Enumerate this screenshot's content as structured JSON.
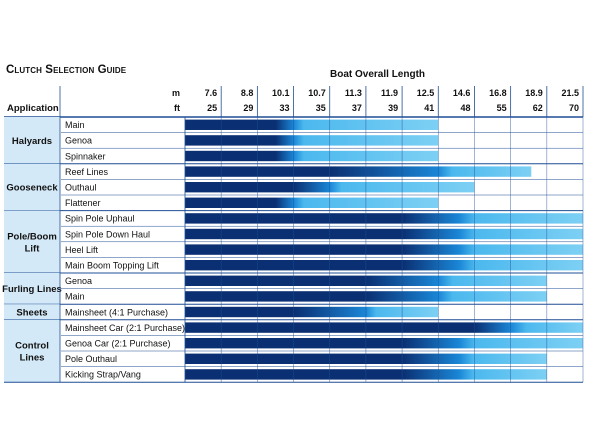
{
  "chart_data": {
    "type": "bar",
    "title": "Clutch Selection Guide",
    "xlabel": "Boat Overall Length",
    "ylabel": "Application",
    "unit_labels": {
      "metres": "m",
      "feet": "ft"
    },
    "boat_lengths_m": [
      "7.6",
      "8.8",
      "10.1",
      "10.7",
      "11.3",
      "11.9",
      "12.5",
      "14.6",
      "16.8",
      "18.9",
      "21.5"
    ],
    "boat_lengths_ft": [
      "25",
      "29",
      "33",
      "35",
      "37",
      "39",
      "41",
      "48",
      "55",
      "62",
      "70"
    ],
    "groups": [
      {
        "name": "Halyards",
        "label_lines": [
          "Halyards"
        ],
        "rows": [
          {
            "label": "Main",
            "dark_to_ft": 31,
            "mid_to_ft": 33,
            "max_ft": 41
          },
          {
            "label": "Genoa",
            "dark_to_ft": 31,
            "mid_to_ft": 33,
            "max_ft": 41
          },
          {
            "label": "Spinnaker",
            "dark_to_ft": 31,
            "mid_to_ft": 33,
            "max_ft": 41
          }
        ]
      },
      {
        "name": "Gooseneck",
        "label_lines": [
          "Gooseneck"
        ],
        "rows": [
          {
            "label": "Reef Lines",
            "dark_to_ft": 35,
            "mid_to_ft": 41,
            "max_ft": 59
          },
          {
            "label": "Outhaul",
            "dark_to_ft": 33,
            "mid_to_ft": 35,
            "max_ft": 48
          },
          {
            "label": "Flattener",
            "dark_to_ft": 31,
            "mid_to_ft": 33,
            "max_ft": 41
          }
        ]
      },
      {
        "name": "Pole/Boom Lift",
        "label_lines": [
          "Pole/Boom",
          "Lift"
        ],
        "rows": [
          {
            "label": "Spin Pole Uphaul",
            "dark_to_ft": 39,
            "mid_to_ft": 45,
            "max_ft": 70
          },
          {
            "label": "Spin Pole Down Haul",
            "dark_to_ft": 39,
            "mid_to_ft": 45,
            "max_ft": 70
          },
          {
            "label": "Heel Lift",
            "dark_to_ft": 39,
            "mid_to_ft": 45,
            "max_ft": 70
          },
          {
            "label": "Main Boom Topping Lift",
            "dark_to_ft": 39,
            "mid_to_ft": 45,
            "max_ft": 70
          }
        ]
      },
      {
        "name": "Furling Lines",
        "label_lines": [
          "Furling Lines"
        ],
        "rows": [
          {
            "label": "Genoa",
            "dark_to_ft": 37,
            "mid_to_ft": 41,
            "max_ft": 62
          },
          {
            "label": "Main",
            "dark_to_ft": 37,
            "mid_to_ft": 41,
            "max_ft": 62
          }
        ]
      },
      {
        "name": "Sheets",
        "label_lines": [
          "Sheets"
        ],
        "rows": [
          {
            "label": "Mainsheet (4:1 Purchase)",
            "dark_to_ft": 33,
            "mid_to_ft": 37,
            "max_ft": 41
          }
        ]
      },
      {
        "name": "Control Lines",
        "label_lines": [
          "Control",
          "Lines"
        ],
        "rows": [
          {
            "label": "Mainsheet Car (2:1 Purchase)",
            "dark_to_ft": 48,
            "mid_to_ft": 55,
            "max_ft": 70
          },
          {
            "label": "Genoa Car (2:1 Purchase)",
            "dark_to_ft": 39,
            "mid_to_ft": 45,
            "max_ft": 70
          },
          {
            "label": "Pole Outhaul",
            "dark_to_ft": 39,
            "mid_to_ft": 45,
            "max_ft": 62
          },
          {
            "label": "Kicking Strap/Vang",
            "dark_to_ft": 39,
            "mid_to_ft": 45,
            "max_ft": 62
          }
        ]
      }
    ],
    "colors": {
      "dark": "#0a2f72",
      "mid": "#1a86d6",
      "light": "#4bb8ee",
      "end": "#7dd0f4",
      "band": "#d4e9f7",
      "grid": "#1f4f95",
      "text": "#111111"
    }
  }
}
